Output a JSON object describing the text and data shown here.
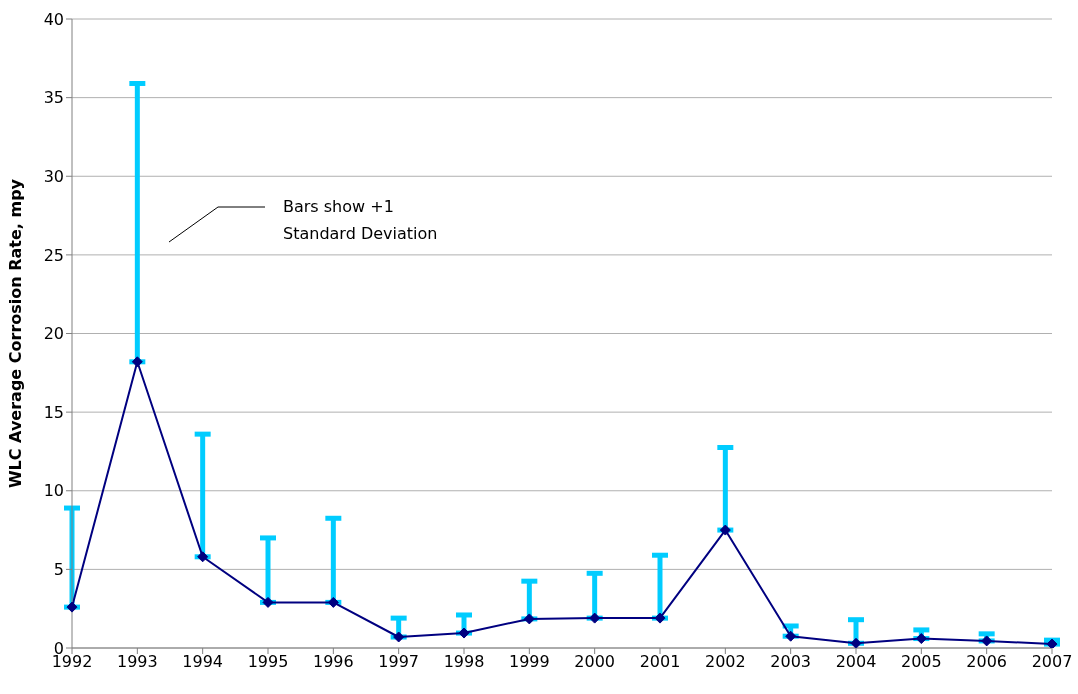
{
  "chart_data": {
    "type": "line",
    "ylabel": "WLC Average Corrosion Rate, mpy",
    "categories": [
      "1992",
      "1993",
      "1994",
      "1995",
      "1996",
      "1997",
      "1998",
      "1999",
      "2000",
      "2001",
      "2002",
      "2003",
      "2004",
      "2005",
      "2006",
      "2007"
    ],
    "series": [
      {
        "color": "#000080",
        "values": [
          2.6,
          18.2,
          5.8,
          2.9,
          2.9,
          0.7,
          0.95,
          1.85,
          1.9,
          1.9,
          7.5,
          0.75,
          0.3,
          0.6,
          0.45,
          0.25
        ],
        "errors": [
          [
            2.6,
            8.9
          ],
          [
            18.2,
            35.9
          ],
          [
            5.8,
            13.6
          ],
          [
            2.9,
            7.0
          ],
          [
            2.9,
            8.25
          ],
          [
            0.7,
            1.9
          ],
          [
            0.95,
            2.1
          ],
          [
            1.85,
            4.25
          ],
          [
            1.9,
            4.75
          ],
          [
            1.9,
            5.9
          ],
          [
            7.5,
            12.75
          ],
          [
            0.75,
            1.4
          ],
          [
            0.3,
            1.8
          ],
          [
            0.6,
            1.15
          ],
          [
            0.45,
            0.9
          ],
          [
            0.25,
            0.5
          ]
        ]
      }
    ],
    "ylim": [
      0,
      40
    ],
    "yticks": [
      0,
      5,
      10,
      15,
      20,
      25,
      30,
      35,
      40
    ],
    "grid": "y",
    "legend": false,
    "marker": "diamond",
    "line_style": "solid",
    "annotations": [
      "Bars show +1\nStandard Deviation"
    ]
  }
}
